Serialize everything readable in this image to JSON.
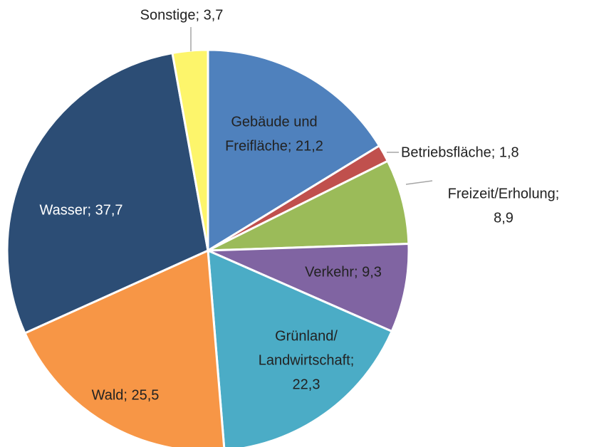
{
  "chart_data": {
    "type": "pie",
    "values": [
      21.2,
      1.8,
      8.9,
      9.3,
      22.3,
      25.5,
      37.7,
      3.7
    ],
    "value_labels": [
      [
        "Gebäude und",
        "Freifläche; 21,2"
      ],
      [
        "Betriebsfläche; 1,8"
      ],
      [
        "Freizeit/Erholung;",
        "8,9"
      ],
      [
        "Verkehr; 9,3"
      ],
      [
        "Grünland/",
        "Landwirtschaft;",
        "22,3"
      ],
      [
        "Wald; 25,5"
      ],
      [
        "Wasser; 37,7"
      ],
      [
        "Sonstige; 3,7"
      ]
    ],
    "colors": [
      "#4f81bd",
      "#c0504d",
      "#9bbb59",
      "#8064a2",
      "#4bacc6",
      "#f79646",
      "#2c4d75",
      "#fdf56b"
    ]
  }
}
